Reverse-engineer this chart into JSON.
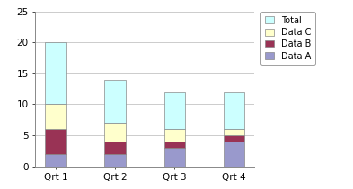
{
  "categories": [
    "Qrt 1",
    "Qrt 2",
    "Qrt 3",
    "Qrt 4"
  ],
  "data_a": [
    2,
    2,
    3,
    4
  ],
  "data_b": [
    4,
    2,
    1,
    1
  ],
  "data_c": [
    4,
    3,
    2,
    1
  ],
  "data_total": [
    10,
    7,
    6,
    6
  ],
  "color_a": "#9999cc",
  "color_b": "#993355",
  "color_c": "#ffffcc",
  "color_total": "#ccffff",
  "ylim": [
    0,
    25
  ],
  "yticks": [
    0,
    5,
    10,
    15,
    20,
    25
  ],
  "bg_color": "#ffffff",
  "plot_bg_color": "#ffffff",
  "grid_color": "#cccccc",
  "bar_edge_color": "#888888",
  "bar_width": 0.35,
  "legend_fontsize": 7,
  "tick_fontsize": 7.5
}
